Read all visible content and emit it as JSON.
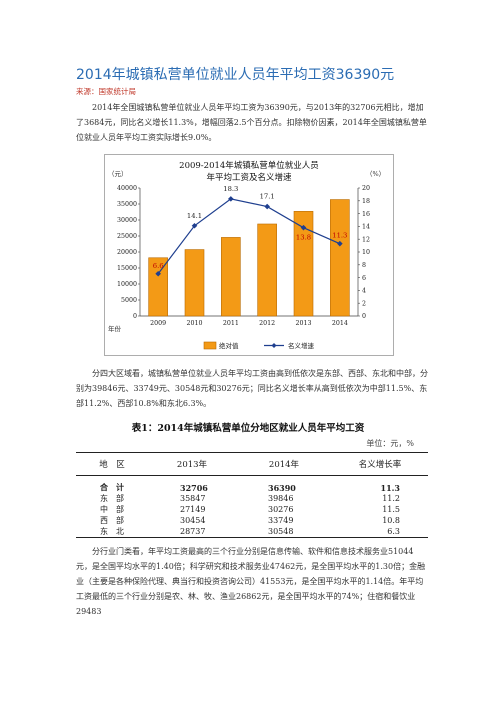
{
  "title": "2014年城镇私营单位就业人员年平均工资36390元",
  "source": "来源：国家统计局",
  "para1": "2014年全国城镇私营单位就业人员年平均工资为36390元，与2013年的32706元相比，增加了3684元，同比名义增长11.3%，增幅回落2.5个百分点。扣除物价因素，2014年全国城镇私营单位就业人员年平均工资实际增长9.0%。",
  "para2": "分四大区域看，城镇私营单位就业人员年平均工资由高到低依次是东部、西部、东北和中部，分别为39846元、33749元、30548元和30276元；同比名义增长率从高到低依次为中部11.5%、东部11.2%、西部10.8%和东北6.3%。",
  "para3": "分行业门类看，年平均工资最高的三个行业分别是信息传输、软件和信息技术服务业51044元，是全国平均水平的1.40倍；科学研究和技术服务业47462元，是全国平均水平的1.30倍；金融业（主要是各种保险代理、典当行和投资咨询公司）41553元，是全国平均水平的1.14倍。年平均工资最低的三个行业分别是农、林、牧、渔业26862元，是全国平均水平的74%；住宿和餐饮业29483",
  "chart_data": {
    "type": "bar",
    "title_line1": "2009-2014年城镇私营单位就业人员",
    "title_line2": "年平均工资及名义增速",
    "left_unit": "（元）",
    "right_unit": "（%）",
    "xlabel": "年份",
    "categories": [
      "2009",
      "2010",
      "2011",
      "2012",
      "2013",
      "2014"
    ],
    "ylim": [
      0,
      40000
    ],
    "y2lim": [
      0,
      20
    ],
    "left_ticks": [
      "0",
      "5000",
      "10000",
      "15000",
      "20000",
      "25000",
      "30000",
      "35000",
      "40000"
    ],
    "right_ticks": [
      "0",
      "2",
      "4",
      "6",
      "8",
      "10",
      "12",
      "14",
      "16",
      "18",
      "20"
    ],
    "series": [
      {
        "name": "绝对值",
        "kind": "bar",
        "values": [
          18199,
          20759,
          24556,
          28752,
          32706,
          36390
        ]
      },
      {
        "name": "名义增速",
        "kind": "line",
        "values": [
          6.6,
          14.1,
          18.3,
          17.1,
          13.8,
          11.3
        ]
      }
    ],
    "point_labels": [
      "6.6",
      "14.1",
      "18.3",
      "17.1",
      "13.8",
      "11.3"
    ],
    "colors": {
      "bar": "#f39a16",
      "bar_edge": "#b96a00",
      "line": "#1f3f8f",
      "label_red": "#c00000"
    }
  },
  "table": {
    "title": "表1：2014年城镇私营单位分地区就业人员年平均工资",
    "unit": "单位：元，%",
    "headers": [
      "地　区",
      "2013年",
      "2014年",
      "名义增长率"
    ],
    "rows": [
      [
        "合　计",
        "32706",
        "36390",
        "11.3"
      ],
      [
        "东　部",
        "35847",
        "39846",
        "11.2"
      ],
      [
        "中　部",
        "27149",
        "30276",
        "11.5"
      ],
      [
        "西　部",
        "30454",
        "33749",
        "10.8"
      ],
      [
        "东　北",
        "28737",
        "30548",
        "6.3"
      ]
    ]
  }
}
